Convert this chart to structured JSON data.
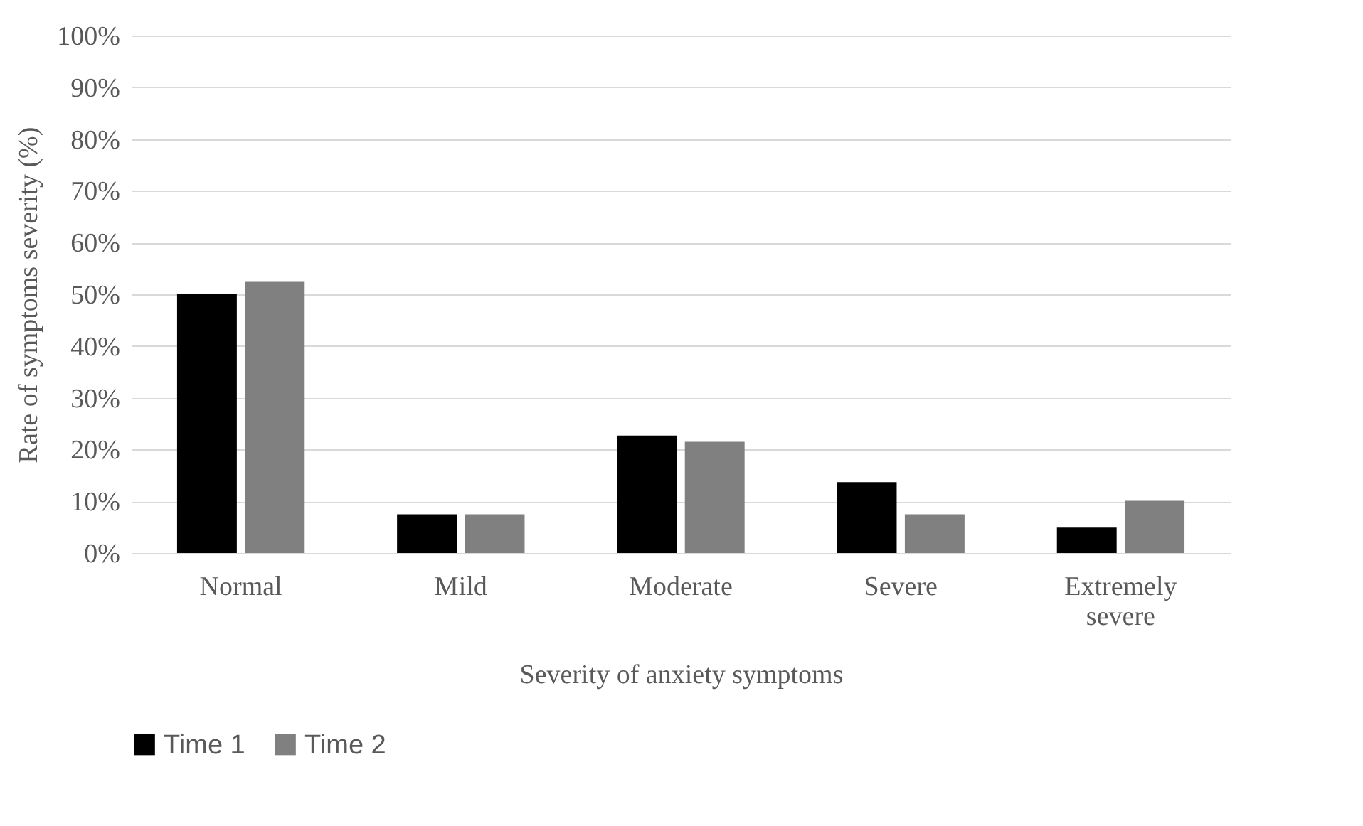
{
  "chart_data": {
    "type": "bar",
    "xlabel": "Severity of anxiety symptoms",
    "ylabel": "Rate of symptoms severity (%)",
    "categories": [
      "Normal",
      "Mild",
      "Moderate",
      "Severe",
      "Extremely severe"
    ],
    "series": [
      {
        "name": "Time 1",
        "color": "#000000",
        "values": [
          50,
          7.5,
          22.7,
          13.7,
          4.9
        ]
      },
      {
        "name": "Time 2",
        "color": "#808080",
        "values": [
          52.4,
          7.5,
          21.5,
          7.5,
          10.1
        ]
      }
    ],
    "ylim": [
      0,
      100
    ],
    "yticks": [
      {
        "value": 0,
        "label": "0%"
      },
      {
        "value": 10,
        "label": "10%"
      },
      {
        "value": 20,
        "label": "20%"
      },
      {
        "value": 30,
        "label": "30%"
      },
      {
        "value": 40,
        "label": "40%"
      },
      {
        "value": 50,
        "label": "50%"
      },
      {
        "value": 60,
        "label": "60%"
      },
      {
        "value": 70,
        "label": "70%"
      },
      {
        "value": 80,
        "label": "80%"
      },
      {
        "value": 90,
        "label": "90%"
      },
      {
        "value": 100,
        "label": "100%"
      }
    ],
    "grid": "y",
    "legend": "bottom"
  }
}
